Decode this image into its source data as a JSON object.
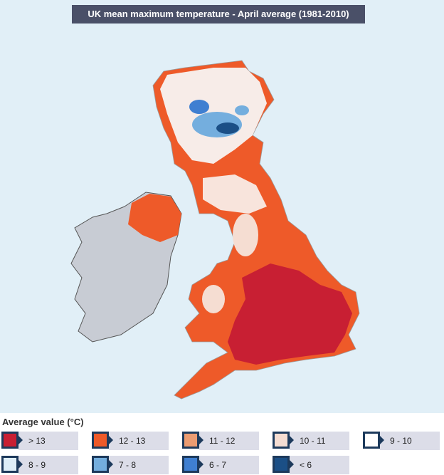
{
  "header": {
    "title": "UK mean maximum temperature - April average (1981-2010)"
  },
  "legend": {
    "title": "Average value (°C)",
    "items": [
      {
        "label": "> 13",
        "color": "#c81f33"
      },
      {
        "label": "12 - 13",
        "color": "#ee5a29"
      },
      {
        "label": "11 - 12",
        "color": "#eb9c72"
      },
      {
        "label": "10 - 11",
        "color": "#f5ddd2"
      },
      {
        "label": "9 - 10",
        "color": "#ffffff"
      },
      {
        "label": "8 - 9",
        "color": "#deeef8"
      },
      {
        "label": "7 - 8",
        "color": "#74aede"
      },
      {
        "label": "6 - 7",
        "color": "#3f7fd1"
      },
      {
        "label": "< 6",
        "color": "#1b4f86"
      }
    ]
  }
}
